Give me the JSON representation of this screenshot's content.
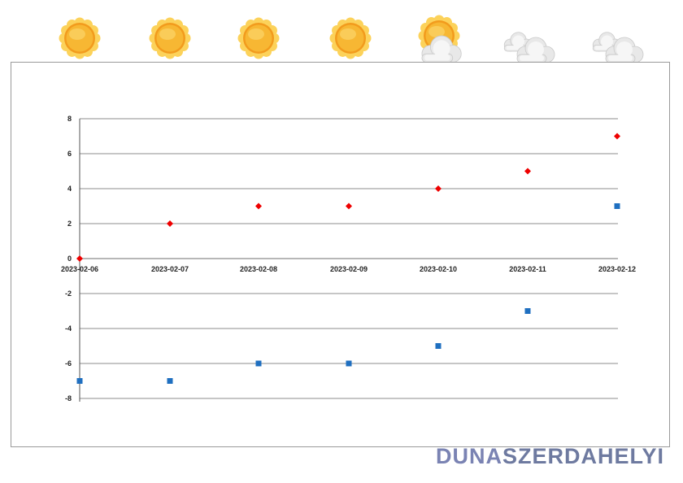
{
  "forecast_icons": [
    {
      "date": "2023-02-06",
      "icon": "sun-icon"
    },
    {
      "date": "2023-02-07",
      "icon": "sun-icon"
    },
    {
      "date": "2023-02-08",
      "icon": "sun-icon"
    },
    {
      "date": "2023-02-09",
      "icon": "sun-icon"
    },
    {
      "date": "2023-02-10",
      "icon": "sun-behind-cloud-icon"
    },
    {
      "date": "2023-02-11",
      "icon": "cloud-icon"
    },
    {
      "date": "2023-02-12",
      "icon": "cloud-icon"
    }
  ],
  "chart_data": {
    "type": "scatter",
    "title": "",
    "xlabel": "",
    "ylabel": "",
    "x": [
      "2023-02-06",
      "2023-02-07",
      "2023-02-08",
      "2023-02-09",
      "2023-02-10",
      "2023-02-11",
      "2023-02-12"
    ],
    "yticks": [
      "8",
      "6",
      "4",
      "2",
      "0",
      "-2",
      "-4",
      "-6",
      "-8"
    ],
    "ylim": [
      -8,
      8
    ],
    "grid": true,
    "series": [
      {
        "marker": "diamond",
        "color": "#ee0000",
        "values": [
          0,
          2,
          3,
          3,
          4,
          5,
          7
        ]
      },
      {
        "marker": "square",
        "color": "#1f6fc0",
        "values": [
          -7,
          -7,
          -6,
          -6,
          -5,
          -3,
          3
        ]
      }
    ]
  },
  "logo": {
    "part_a": "DUNA",
    "part_b": "SZERDAHELYI"
  },
  "colors": {
    "sun": "#f7b733",
    "sun_edge": "#f29b1d",
    "cloud": "#e8e8e8",
    "gridline": "#8c8c8c"
  }
}
